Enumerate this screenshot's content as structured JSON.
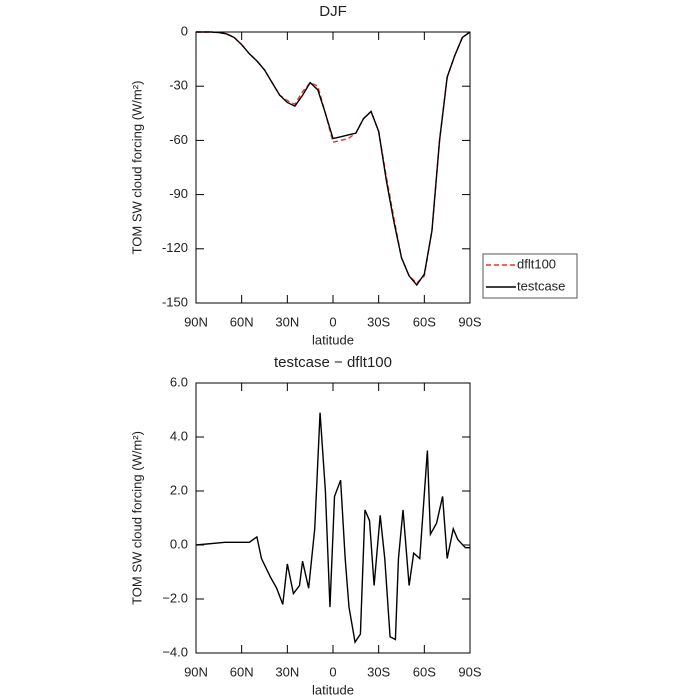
{
  "chart_data": [
    {
      "type": "line",
      "title": "DJF",
      "xlabel": "latitude",
      "ylabel": "TOM SW cloud forcing (W/m²)",
      "x": [
        90,
        85,
        80,
        75,
        70,
        65,
        60,
        55,
        50,
        45,
        40,
        35,
        30,
        25,
        20,
        15,
        10,
        5,
        0,
        -5,
        -10,
        -15,
        -20,
        -25,
        -30,
        -35,
        -40,
        -45,
        -50,
        -55,
        -60,
        -65,
        -70,
        -75,
        -80,
        -85,
        -90
      ],
      "series": [
        {
          "name": "dflt100",
          "color": "#e8332a",
          "dash": true,
          "values": [
            0,
            0,
            0,
            -0.3,
            -1,
            -3,
            -7,
            -12,
            -16,
            -21,
            -28,
            -35,
            -38,
            -40,
            -33,
            -28,
            -30,
            -45,
            -61,
            -60,
            -59,
            -56,
            -48,
            -44,
            -55,
            -80,
            -103,
            -125,
            -135,
            -139,
            -135,
            -110,
            -60,
            -25,
            -13,
            -3,
            0
          ]
        },
        {
          "name": "testcase",
          "color": "#000000",
          "dash": false,
          "values": [
            0,
            0,
            0,
            -0.3,
            -1,
            -3,
            -7,
            -12,
            -16,
            -21,
            -28,
            -35,
            -39,
            -41,
            -35,
            -28,
            -32,
            -45,
            -59,
            -58,
            -57,
            -56,
            -48,
            -44,
            -55,
            -82,
            -105,
            -125,
            -135,
            -140,
            -134,
            -110,
            -60,
            -25,
            -13,
            -3,
            0
          ]
        }
      ],
      "xlim": [
        90,
        -90
      ],
      "xticks": [
        {
          "value": 90,
          "label": "90N"
        },
        {
          "value": 60,
          "label": "60N"
        },
        {
          "value": 30,
          "label": "30N"
        },
        0,
        {
          "value": -30,
          "label": "30S"
        },
        {
          "value": -60,
          "label": "60S"
        },
        {
          "value": -90,
          "label": "90S"
        }
      ],
      "ylim": [
        -150,
        0
      ],
      "yticks": [
        -150,
        -120,
        -90,
        -60,
        -30,
        0
      ],
      "legend": "right"
    },
    {
      "type": "line",
      "title": "testcase − dflt100",
      "xlabel": "latitude",
      "ylabel": "TOM SW cloud forcing (W/m²)",
      "x": [
        90,
        71,
        64,
        61,
        58,
        55,
        50,
        47,
        41,
        37,
        33,
        30,
        26,
        22,
        20,
        16,
        12,
        8.5,
        5,
        2,
        -1,
        -5,
        -8,
        -10.5,
        -14.5,
        -18,
        -21,
        -24,
        -27,
        -31,
        -34,
        -37.5,
        -41,
        -43,
        -46,
        -50,
        -53,
        -57,
        -62,
        -64,
        -68,
        -72,
        -75,
        -79,
        -82,
        -87,
        -90
      ],
      "color": "#000000",
      "values": [
        0,
        0.1,
        0.1,
        0.1,
        0.1,
        0.1,
        0.3,
        -0.5,
        -1.2,
        -1.6,
        -2.2,
        -0.7,
        -1.8,
        -1.5,
        -0.6,
        -1.6,
        0.6,
        4.9,
        2.0,
        -2.3,
        1.8,
        2.4,
        -0.5,
        -2.3,
        -3.6,
        -3.3,
        1.3,
        0.9,
        -1.5,
        1.1,
        -0.5,
        -3.4,
        -3.5,
        -0.5,
        1.3,
        -1.5,
        -0.3,
        -0.5,
        3.5,
        0.4,
        0.8,
        1.8,
        -0.5,
        0.6,
        0.2,
        -0.1,
        -0.1
      ],
      "xlim": [
        90,
        -90
      ],
      "xticks": [
        {
          "value": 90,
          "label": "90N"
        },
        {
          "value": 60,
          "label": "60N"
        },
        {
          "value": 30,
          "label": "30N"
        },
        0,
        {
          "value": -30,
          "label": "30S"
        },
        {
          "value": -60,
          "label": "60S"
        },
        {
          "value": -90,
          "label": "90S"
        }
      ],
      "ylim": [
        -4,
        6
      ],
      "yticks": [
        {
          "value": -4,
          "label": "−4.0"
        },
        {
          "value": -2,
          "label": "−2.0"
        },
        {
          "value": 0,
          "label": "0.0"
        },
        {
          "value": 2,
          "label": "2.0"
        },
        {
          "value": 4,
          "label": "4.0"
        },
        {
          "value": 6,
          "label": "6.0"
        }
      ]
    }
  ]
}
